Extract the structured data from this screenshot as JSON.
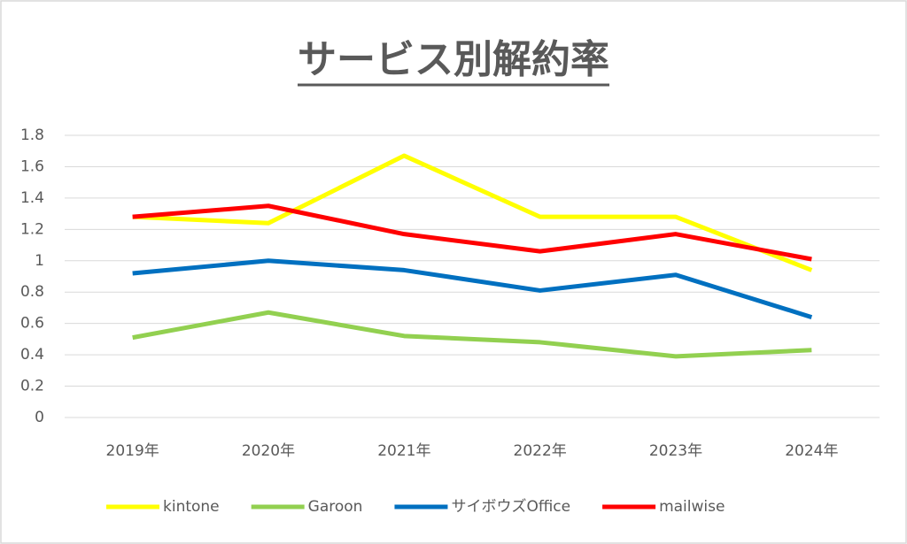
{
  "chart_data": {
    "type": "line",
    "title": "サービス別解約率",
    "categories": [
      "2019年",
      "2020年",
      "2021年",
      "2022年",
      "2023年",
      "2024年"
    ],
    "series": [
      {
        "name": "kintone",
        "color": "#ffff00",
        "values": [
          1.28,
          1.24,
          1.67,
          1.28,
          1.28,
          0.94
        ]
      },
      {
        "name": "Garoon",
        "color": "#92d050",
        "values": [
          0.51,
          0.67,
          0.52,
          0.48,
          0.39,
          0.43
        ]
      },
      {
        "name": "サイボウズOffice",
        "color": "#0070c0",
        "values": [
          0.92,
          1.0,
          0.94,
          0.81,
          0.91,
          0.64
        ]
      },
      {
        "name": "mailwise",
        "color": "#ff0000",
        "values": [
          1.28,
          1.35,
          1.17,
          1.06,
          1.17,
          1.01
        ]
      }
    ],
    "ylim": [
      0,
      1.8
    ],
    "yticks": [
      0,
      0.2,
      0.4,
      0.6,
      0.8,
      1,
      1.2,
      1.4,
      1.6,
      1.8
    ],
    "grid": true,
    "legend": "bottom"
  }
}
